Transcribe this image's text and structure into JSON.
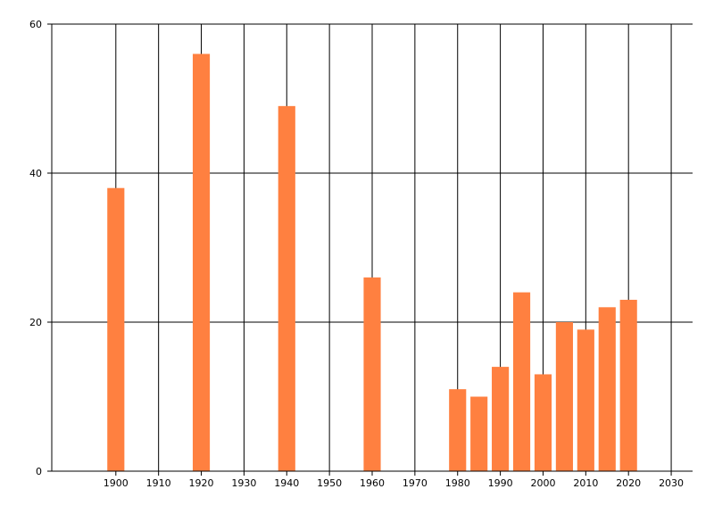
{
  "chart_data": {
    "type": "bar",
    "x": [
      1900,
      1920,
      1940,
      1960,
      1980,
      1985,
      1990,
      1995,
      2000,
      2005,
      2010,
      2015,
      2020
    ],
    "values": [
      38,
      56,
      49,
      26,
      11,
      10,
      14,
      24,
      13,
      20,
      19,
      22,
      23
    ],
    "xlim": [
      1885,
      2035
    ],
    "ylim": [
      0,
      60
    ],
    "xticks": [
      1900,
      1910,
      1920,
      1930,
      1940,
      1950,
      1960,
      1970,
      1980,
      1990,
      2000,
      2010,
      2020,
      2030
    ],
    "yticks": [
      0,
      20,
      40,
      60
    ],
    "grid": true,
    "title": "",
    "xlabel": "",
    "ylabel": "",
    "bar_color": "#ff8040",
    "grid_color": "#000000"
  }
}
